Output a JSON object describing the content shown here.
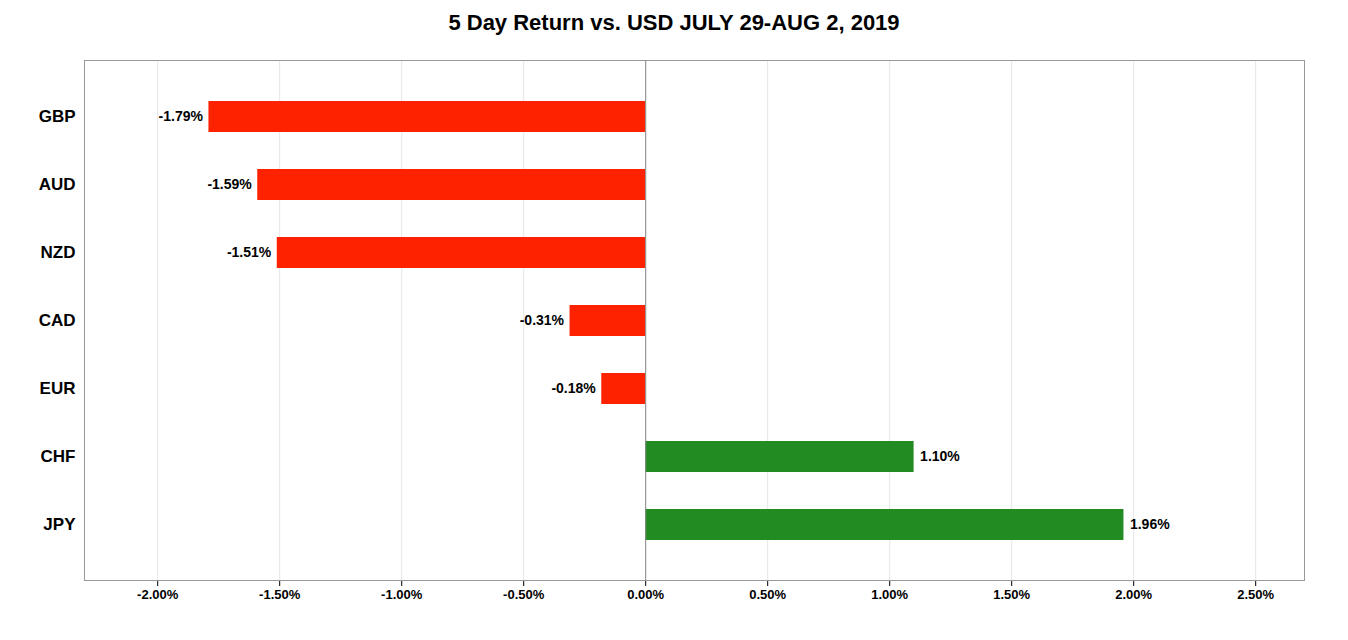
{
  "chart_data": {
    "type": "bar",
    "orientation": "horizontal",
    "title": "5 Day Return vs. USD JULY 29-AUG 2, 2019",
    "categories": [
      "GBP",
      "AUD",
      "NZD",
      "CAD",
      "EUR",
      "CHF",
      "JPY"
    ],
    "values": [
      -1.79,
      -1.59,
      -1.51,
      -0.31,
      -0.18,
      1.1,
      1.96
    ],
    "value_labels": [
      "-1.79%",
      "-1.59%",
      "-1.51%",
      "-0.31%",
      "-0.18%",
      "1.10%",
      "1.96%"
    ],
    "data_labels": true,
    "colors": [
      "#ff2200",
      "#ff2200",
      "#ff2200",
      "#ff2200",
      "#ff2200",
      "#228B22",
      "#228B22"
    ],
    "xlim": [
      -2.3,
      2.7
    ],
    "xticks": [
      {
        "value": -2.0,
        "label": "-2.00%"
      },
      {
        "value": -1.5,
        "label": "-1.50%"
      },
      {
        "value": -1.0,
        "label": "-1.00%"
      },
      {
        "value": -0.5,
        "label": "-0.50%"
      },
      {
        "value": 0.0,
        "label": "0.00%"
      },
      {
        "value": 0.5,
        "label": "0.50%"
      },
      {
        "value": 1.0,
        "label": "1.00%"
      },
      {
        "value": 1.5,
        "label": "1.50%"
      },
      {
        "value": 2.0,
        "label": "2.00%"
      },
      {
        "value": 2.5,
        "label": "2.50%"
      }
    ],
    "grid": true
  }
}
